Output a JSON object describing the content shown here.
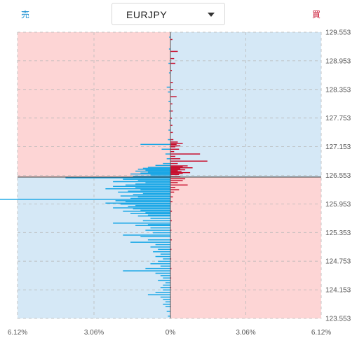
{
  "header": {
    "sell_label": "売",
    "buy_label": "買",
    "pair_selector": {
      "selected": "EURJPY"
    }
  },
  "colors": {
    "sell_bar": "#1aa7e6",
    "buy_bar": "#c8102e",
    "upper_left_bg": "#fdd5d5",
    "upper_right_bg": "#d5e8f6",
    "lower_left_bg": "#d5e8f6",
    "lower_right_bg": "#fdd5d5"
  },
  "chart_data": {
    "type": "bar",
    "orientation": "horizontal",
    "y_ticks": [
      "129.553",
      "128.953",
      "128.353",
      "127.753",
      "127.153",
      "126.553",
      "125.953",
      "125.353",
      "124.753",
      "124.153",
      "123.553"
    ],
    "x_ticks": [
      "6.12%",
      "3.06%",
      "0%",
      "3.06%",
      "6.12%"
    ],
    "ylim": [
      123.553,
      129.553
    ],
    "xlim_percent": [
      -6.12,
      6.12
    ],
    "current_price": 126.553,
    "grid": true,
    "series": [
      {
        "name": "売",
        "side": "left",
        "points": [
          [
            129.45,
            0.05
          ],
          [
            129.2,
            0.06
          ],
          [
            128.9,
            0.08
          ],
          [
            128.7,
            0.06
          ],
          [
            128.4,
            0.15
          ],
          [
            128.3,
            0.1
          ],
          [
            128.1,
            0.08
          ],
          [
            127.9,
            0.06
          ],
          [
            127.7,
            0.06
          ],
          [
            127.5,
            0.08
          ],
          [
            127.3,
            0.1
          ],
          [
            127.2,
            1.2
          ],
          [
            127.1,
            0.35
          ],
          [
            127.0,
            0.2
          ],
          [
            126.9,
            0.15
          ],
          [
            126.8,
            0.3
          ],
          [
            126.76,
            0.6
          ],
          [
            126.72,
            0.9
          ],
          [
            126.7,
            1.1
          ],
          [
            126.68,
            1.3
          ],
          [
            126.66,
            1.0
          ],
          [
            126.64,
            1.4
          ],
          [
            126.62,
            0.9
          ],
          [
            126.6,
            1.2
          ],
          [
            126.58,
            1.6
          ],
          [
            126.56,
            0.8
          ],
          [
            126.53,
            1.5
          ],
          [
            126.5,
            4.2
          ],
          [
            126.47,
            1.9
          ],
          [
            126.45,
            1.3
          ],
          [
            126.42,
            2.3
          ],
          [
            126.4,
            1.0
          ],
          [
            126.37,
            1.4
          ],
          [
            126.35,
            1.8
          ],
          [
            126.32,
            2.3
          ],
          [
            126.3,
            1.4
          ],
          [
            126.27,
            2.6
          ],
          [
            126.25,
            1.2
          ],
          [
            126.22,
            1.7
          ],
          [
            126.2,
            2.1
          ],
          [
            126.17,
            1.1
          ],
          [
            126.15,
            1.5
          ],
          [
            126.12,
            2.0
          ],
          [
            126.1,
            1.3
          ],
          [
            126.07,
            1.6
          ],
          [
            126.05,
            6.9
          ],
          [
            126.02,
            2.2
          ],
          [
            126.0,
            1.8
          ],
          [
            125.97,
            2.6
          ],
          [
            125.95,
            2.0
          ],
          [
            125.92,
            1.4
          ],
          [
            125.9,
            1.7
          ],
          [
            125.87,
            2.3
          ],
          [
            125.85,
            1.5
          ],
          [
            125.82,
            1.2
          ],
          [
            125.8,
            1.9
          ],
          [
            125.77,
            1.0
          ],
          [
            125.75,
            1.6
          ],
          [
            125.72,
            0.9
          ],
          [
            125.7,
            1.3
          ],
          [
            125.65,
            0.8
          ],
          [
            125.6,
            1.1
          ],
          [
            125.55,
            2.3
          ],
          [
            125.52,
            0.9
          ],
          [
            125.5,
            1.4
          ],
          [
            125.45,
            0.8
          ],
          [
            125.4,
            1.0
          ],
          [
            125.35,
            0.7
          ],
          [
            125.3,
            1.9
          ],
          [
            125.27,
            1.2
          ],
          [
            125.2,
            0.9
          ],
          [
            125.15,
            1.6
          ],
          [
            125.1,
            0.6
          ],
          [
            125.05,
            0.8
          ],
          [
            125.0,
            0.5
          ],
          [
            124.95,
            0.7
          ],
          [
            124.9,
            0.4
          ],
          [
            124.85,
            0.6
          ],
          [
            124.8,
            0.3
          ],
          [
            124.75,
            0.5
          ],
          [
            124.7,
            0.8
          ],
          [
            124.65,
            0.4
          ],
          [
            124.6,
            1.0
          ],
          [
            124.55,
            1.9
          ],
          [
            124.5,
            0.6
          ],
          [
            124.45,
            0.4
          ],
          [
            124.4,
            0.3
          ],
          [
            124.35,
            0.5
          ],
          [
            124.3,
            0.2
          ],
          [
            124.25,
            0.3
          ],
          [
            124.2,
            0.4
          ],
          [
            124.15,
            0.3
          ],
          [
            124.1,
            0.6
          ],
          [
            124.05,
            0.9
          ],
          [
            124.0,
            0.4
          ],
          [
            123.95,
            0.3
          ],
          [
            123.9,
            0.2
          ],
          [
            123.85,
            0.3
          ],
          [
            123.8,
            0.2
          ],
          [
            123.7,
            0.15
          ],
          [
            123.6,
            0.1
          ]
        ]
      },
      {
        "name": "買",
        "side": "right",
        "points": [
          [
            129.4,
            0.08
          ],
          [
            129.15,
            0.3
          ],
          [
            129.0,
            0.15
          ],
          [
            128.9,
            0.2
          ],
          [
            128.75,
            0.06
          ],
          [
            128.5,
            0.1
          ],
          [
            128.35,
            0.12
          ],
          [
            128.2,
            0.25
          ],
          [
            128.05,
            0.08
          ],
          [
            127.9,
            0.1
          ],
          [
            127.75,
            0.06
          ],
          [
            127.6,
            0.08
          ],
          [
            127.45,
            0.1
          ],
          [
            127.3,
            0.12
          ],
          [
            127.25,
            0.3
          ],
          [
            127.22,
            0.5
          ],
          [
            127.2,
            0.25
          ],
          [
            127.17,
            0.4
          ],
          [
            127.15,
            0.2
          ],
          [
            127.1,
            0.35
          ],
          [
            127.05,
            0.15
          ],
          [
            127.0,
            1.2
          ],
          [
            126.95,
            0.2
          ],
          [
            126.9,
            0.4
          ],
          [
            126.85,
            1.5
          ],
          [
            126.8,
            0.3
          ],
          [
            126.75,
            0.7
          ],
          [
            126.73,
            0.5
          ],
          [
            126.71,
            0.9
          ],
          [
            126.69,
            0.4
          ],
          [
            126.67,
            0.6
          ],
          [
            126.65,
            0.3
          ],
          [
            126.63,
            0.45
          ],
          [
            126.61,
            0.8
          ],
          [
            126.59,
            0.5
          ],
          [
            126.57,
            0.35
          ],
          [
            126.52,
            0.4
          ],
          [
            126.48,
            0.6
          ],
          [
            126.44,
            0.5
          ],
          [
            126.4,
            0.3
          ],
          [
            126.35,
            0.7
          ],
          [
            126.3,
            0.2
          ],
          [
            126.25,
            0.35
          ],
          [
            126.2,
            0.15
          ],
          [
            126.1,
            0.1
          ],
          [
            126.0,
            0.08
          ],
          [
            125.8,
            0.06
          ],
          [
            125.6,
            0.05
          ],
          [
            125.4,
            0.04
          ],
          [
            125.2,
            0.05
          ],
          [
            125.0,
            0.04
          ],
          [
            124.8,
            0.03
          ],
          [
            124.6,
            0.04
          ],
          [
            124.4,
            0.03
          ],
          [
            124.2,
            0.03
          ],
          [
            124.0,
            0.02
          ],
          [
            123.8,
            0.02
          ]
        ]
      }
    ]
  }
}
